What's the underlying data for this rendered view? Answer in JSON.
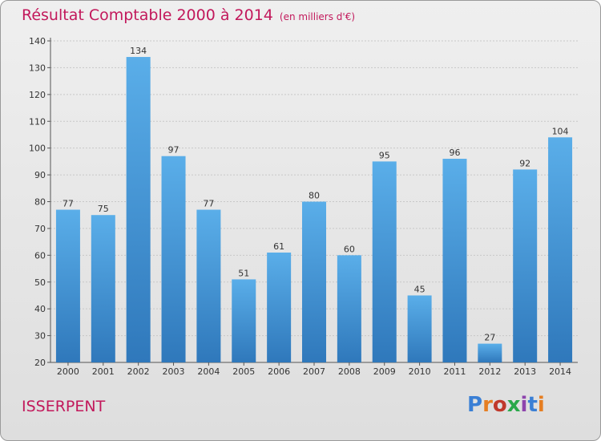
{
  "header": {
    "title": "Résultat Comptable 2000 à 2014",
    "subtitle": "(en milliers d'€)"
  },
  "footer": {
    "commune": "ISSERPENT",
    "logo": "Proxiti",
    "logo_colors": [
      "#3a7fd5",
      "#e67e22",
      "#c0392b",
      "#2aa84a",
      "#8e44ad",
      "#3a7fd5",
      "#e67e22"
    ]
  },
  "chart_data": {
    "type": "bar",
    "categories": [
      "2000",
      "2001",
      "2002",
      "2003",
      "2004",
      "2005",
      "2006",
      "2007",
      "2008",
      "2009",
      "2010",
      "2011",
      "2012",
      "2013",
      "2014"
    ],
    "values": [
      77,
      75,
      134,
      97,
      77,
      51,
      61,
      80,
      60,
      95,
      45,
      96,
      27,
      92,
      104
    ],
    "ylim": [
      20,
      140
    ],
    "yticks": [
      20,
      30,
      40,
      50,
      60,
      70,
      80,
      90,
      100,
      110,
      120,
      130,
      140
    ],
    "grid": true,
    "bar_color": "#4a9de0",
    "title": "Résultat Comptable 2000 à 2014",
    "xlabel": "",
    "ylabel": ""
  }
}
